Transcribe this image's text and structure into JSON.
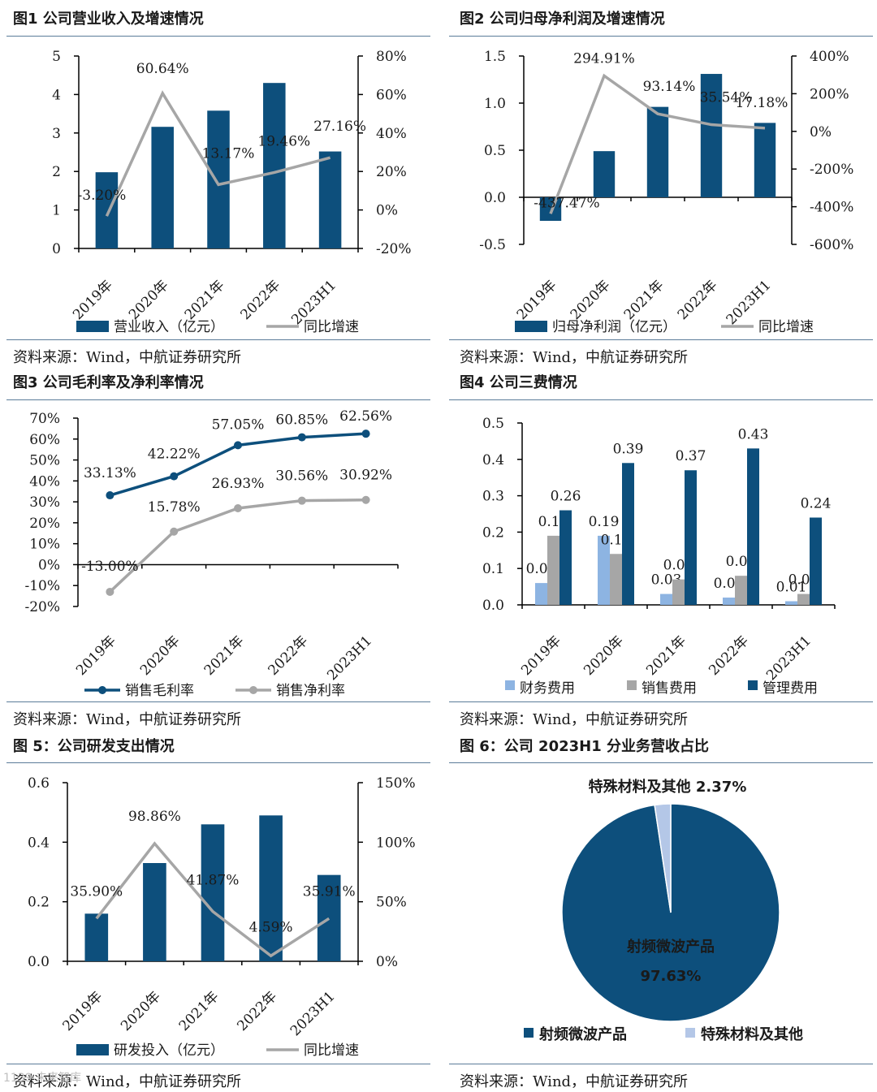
{
  "figures": [
    {
      "title": "图1  公司营业收入及增速情况",
      "source": "资料来源：Wind，中航证券研究所"
    },
    {
      "title": "图2  公司归母净利润及增速情况",
      "source": "资料来源：Wind，中航证券研究所"
    },
    {
      "title": "图3  公司毛利率及净利率情况",
      "source": "资料来源：Wind，中航证券研究所"
    },
    {
      "title": "图4  公司三费情况",
      "source": "资料来源：Wind，中航证券研究所"
    },
    {
      "title": "图 5：公司研发支出情况",
      "source": "资料来源：Wind，中航证券研究所"
    },
    {
      "title": "图 6：公司 2023H1 分业务营收占比",
      "source": "资料来源：Wind，中航证券研究所"
    }
  ],
  "watermark": "1139 未来智库",
  "colors": {
    "navy": "#0d4f7c",
    "gray": "#a6a6a6",
    "light_blue": "#8db4e2",
    "light_blue_pie": "#b4c7e7",
    "rule": "#5b7c99"
  },
  "chart_data": [
    {
      "type": "bar",
      "categories": [
        "2019年",
        "2020年",
        "2021年",
        "2022年",
        "2023H1"
      ],
      "series": [
        {
          "name": "营业收入（亿元）",
          "type": "bar",
          "axis": "left",
          "values": [
            1.98,
            3.16,
            3.58,
            4.3,
            2.52
          ]
        },
        {
          "name": "同比增速",
          "type": "line",
          "axis": "right",
          "values": [
            -3.2,
            60.64,
            13.17,
            19.46,
            27.16
          ],
          "labels": [
            "-3.20%",
            "60.64%",
            "13.17%",
            "19.46%",
            "27.16%"
          ]
        }
      ],
      "ylim": [
        0,
        5
      ],
      "yticks": [
        "0",
        "1",
        "2",
        "3",
        "4",
        "5"
      ],
      "y2lim": [
        -20,
        80
      ],
      "y2ticks": [
        "-20%",
        "0%",
        "20%",
        "40%",
        "60%",
        "80%"
      ],
      "legend": "bottom"
    },
    {
      "type": "bar",
      "categories": [
        "2019年",
        "2020年",
        "2021年",
        "2022年",
        "2023H1"
      ],
      "series": [
        {
          "name": "归母净利润（亿元）",
          "type": "bar",
          "axis": "left",
          "values": [
            -0.25,
            0.49,
            0.96,
            1.31,
            0.79
          ]
        },
        {
          "name": "同比增速",
          "type": "line",
          "axis": "right",
          "values": [
            -437.47,
            294.91,
            93.14,
            35.54,
            17.18
          ],
          "labels": [
            "-437.47%",
            "294.91%",
            "93.14%",
            "35.54%",
            "17.18%"
          ]
        }
      ],
      "ylim": [
        -0.5,
        1.5
      ],
      "yticks": [
        "-0.5",
        "0.0",
        "0.5",
        "1.0",
        "1.5"
      ],
      "y2lim": [
        -600,
        400
      ],
      "y2ticks": [
        "-600%",
        "-400%",
        "-200%",
        "0%",
        "200%",
        "400%"
      ],
      "legend": "bottom"
    },
    {
      "type": "line",
      "categories": [
        "2019年",
        "2020年",
        "2021年",
        "2022年",
        "2023H1"
      ],
      "series": [
        {
          "name": "销售毛利率",
          "values": [
            33.13,
            42.22,
            57.05,
            60.85,
            62.56
          ],
          "labels": [
            "33.13%",
            "42.22%",
            "57.05%",
            "60.85%",
            "62.56%"
          ]
        },
        {
          "name": "销售净利率",
          "values": [
            -13.0,
            15.78,
            26.93,
            30.56,
            30.92
          ],
          "labels": [
            "-13.00%",
            "15.78%",
            "26.93%",
            "30.56%",
            "30.92%"
          ]
        }
      ],
      "ylim": [
        -20,
        70
      ],
      "yticks": [
        "-20%",
        "-10%",
        "0%",
        "10%",
        "20%",
        "30%",
        "40%",
        "50%",
        "60%",
        "70%"
      ],
      "legend": "bottom"
    },
    {
      "type": "bar",
      "categories": [
        "2019年",
        "2020年",
        "2021年",
        "2022年",
        "2023H1"
      ],
      "series": [
        {
          "name": "财务费用",
          "values": [
            0.06,
            0.19,
            0.03,
            0.02,
            0.01
          ],
          "labels": [
            "0.06",
            "0.19",
            "0.03",
            "0.02",
            "0.01"
          ]
        },
        {
          "name": "销售费用",
          "values": [
            0.19,
            0.14,
            0.07,
            0.08,
            0.03
          ],
          "labels": [
            "0.19",
            "0.14",
            "0.07",
            "0.08",
            "0.03"
          ]
        },
        {
          "name": "管理费用",
          "values": [
            0.26,
            0.39,
            0.37,
            0.43,
            0.24
          ],
          "labels": [
            "0.26",
            "0.39",
            "0.37",
            "0.43",
            "0.24"
          ]
        }
      ],
      "ylim": [
        0,
        0.5
      ],
      "yticks": [
        "0.0",
        "0.1",
        "0.2",
        "0.3",
        "0.4",
        "0.5"
      ],
      "legend": "bottom"
    },
    {
      "type": "bar",
      "categories": [
        "2019年",
        "2020年",
        "2021年",
        "2022年",
        "2023H1"
      ],
      "series": [
        {
          "name": "研发投入（亿元）",
          "type": "bar",
          "axis": "left",
          "values": [
            0.16,
            0.33,
            0.46,
            0.49,
            0.29
          ]
        },
        {
          "name": "同比增速",
          "type": "line",
          "axis": "right",
          "values": [
            35.9,
            98.86,
            41.87,
            4.59,
            35.91
          ],
          "labels": [
            "35.90%",
            "98.86%",
            "41.87%",
            "4.59%",
            "35.91%"
          ]
        }
      ],
      "ylim": [
        0,
        0.6
      ],
      "yticks": [
        "0.0",
        "0.2",
        "0.4",
        "0.6"
      ],
      "y2lim": [
        0,
        150
      ],
      "y2ticks": [
        "0%",
        "50%",
        "100%",
        "150%"
      ],
      "legend": "bottom"
    },
    {
      "type": "pie",
      "labels": [
        "射频微波产品",
        "特殊材料及其他"
      ],
      "values": [
        97.63,
        2.37
      ],
      "slice_labels": [
        "射频微波产品",
        "特殊材料及其他 2.37%"
      ],
      "inner_value_label": "97.63%",
      "legend": "bottom"
    }
  ]
}
